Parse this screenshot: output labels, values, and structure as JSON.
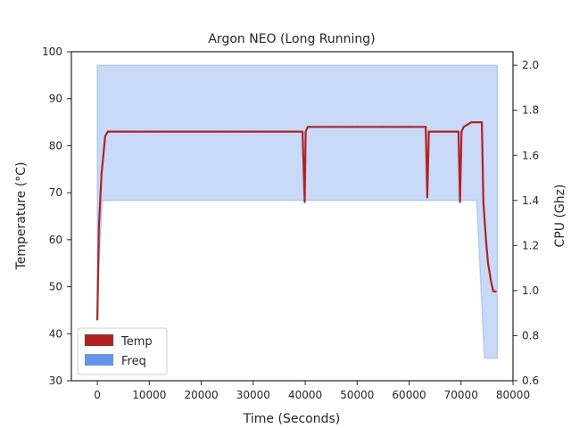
{
  "chart_data": {
    "type": "line",
    "title": "Argon NEO (Long Running)",
    "xlabel": "Time (Seconds)",
    "ylabel_left": "Temperature (°C)",
    "ylabel_right": "CPU (Ghz)",
    "xlim": [
      -5000,
      80000
    ],
    "ylim_left": [
      30,
      100
    ],
    "ylim_right": [
      0.6,
      2.06
    ],
    "x_ticks": [
      0,
      10000,
      20000,
      30000,
      40000,
      50000,
      60000,
      70000,
      80000
    ],
    "y_ticks_left": [
      30,
      40,
      50,
      60,
      70,
      80,
      90,
      100
    ],
    "y_ticks_right": [
      0.6,
      0.8,
      1.0,
      1.2,
      1.4,
      1.6,
      1.8,
      2.0
    ],
    "legend_position": "lower-left",
    "grid": false,
    "series": [
      {
        "name": "Temp",
        "axis": "left",
        "color": "#b22222",
        "x": [
          0,
          300,
          800,
          1500,
          2000,
          5000,
          10000,
          20000,
          30000,
          39500,
          39900,
          40100,
          40500,
          45000,
          46000,
          50000,
          55000,
          60000,
          62500,
          63200,
          63500,
          63800,
          65000,
          69500,
          69800,
          70100,
          70500,
          72000,
          74000,
          74300,
          74800,
          75200,
          75800,
          76200,
          76700
        ],
        "values": [
          43,
          63,
          74,
          82,
          83,
          83,
          83,
          83,
          83,
          83,
          68,
          83,
          84,
          84,
          84,
          84,
          84,
          84,
          84,
          84,
          69,
          83,
          83,
          83,
          68,
          83,
          84,
          85,
          85,
          68,
          60,
          55,
          51,
          49,
          49
        ]
      },
      {
        "name": "Freq",
        "axis": "right",
        "color": "#6495ed",
        "x": [
          0,
          1000,
          37000,
          45000,
          50000,
          60000,
          65000,
          70000,
          73000,
          74500,
          75500,
          77000
        ],
        "high": [
          2.0,
          2.0,
          2.0,
          2.0,
          2.0,
          2.0,
          2.0,
          2.0,
          2.0,
          2.0,
          2.0,
          2.0
        ],
        "low": [
          0.99,
          1.4,
          1.4,
          1.4,
          1.4,
          1.4,
          1.4,
          1.4,
          1.4,
          0.7,
          0.7,
          0.7
        ]
      }
    ]
  }
}
